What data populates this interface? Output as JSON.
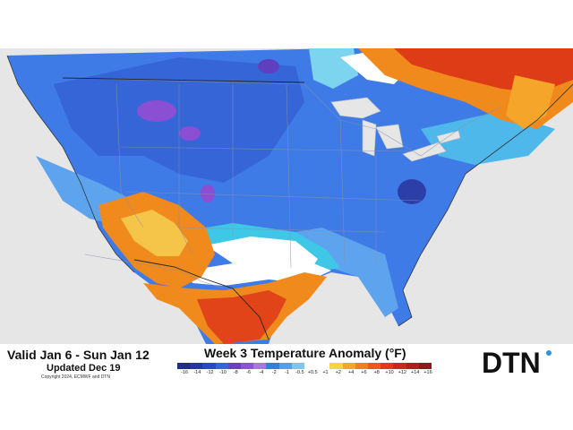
{
  "valid_text": "Valid  Jan 6 - Sun Jan 12",
  "updated_text": "Updated Dec 19",
  "copyright": "Copyright 2024, ECMWF and DTN",
  "title": "Week 3 Temperature Anomaly (°F)",
  "legend_ticks": [
    "-16",
    "-14",
    "-12",
    "-10",
    "-8",
    "-6",
    "-4",
    "-2",
    "-1",
    "-0.5",
    "+0.5",
    "+1",
    "+2",
    "+4",
    "+6",
    "+8",
    "+10",
    "+12",
    "+14",
    "+16"
  ],
  "legend_colors": [
    "#1f2e8a",
    "#2436a8",
    "#2a48c4",
    "#3a63d8",
    "#6a3fc4",
    "#8c52d8",
    "#a478e0",
    "#2d7fe0",
    "#4fa0ee",
    "#7cc6f4",
    "#ffffff",
    "#ffffff",
    "#f7d24a",
    "#f5a52a",
    "#f17f1c",
    "#ea5a17",
    "#dd3c16",
    "#c72a1c",
    "#ac1f1f",
    "#8e1a1a"
  ],
  "logo_text": "DTN",
  "colors": {
    "deep_blue": "#2f5fd8",
    "blue": "#3f7be6",
    "light_blue": "#5da3ee",
    "purple": "#8a4fd3",
    "cyan": "#3ec7e6",
    "orange": "#f08a1c",
    "red": "#e04418",
    "yellow": "#f5c54a",
    "ocean": "#e6e6e6"
  }
}
